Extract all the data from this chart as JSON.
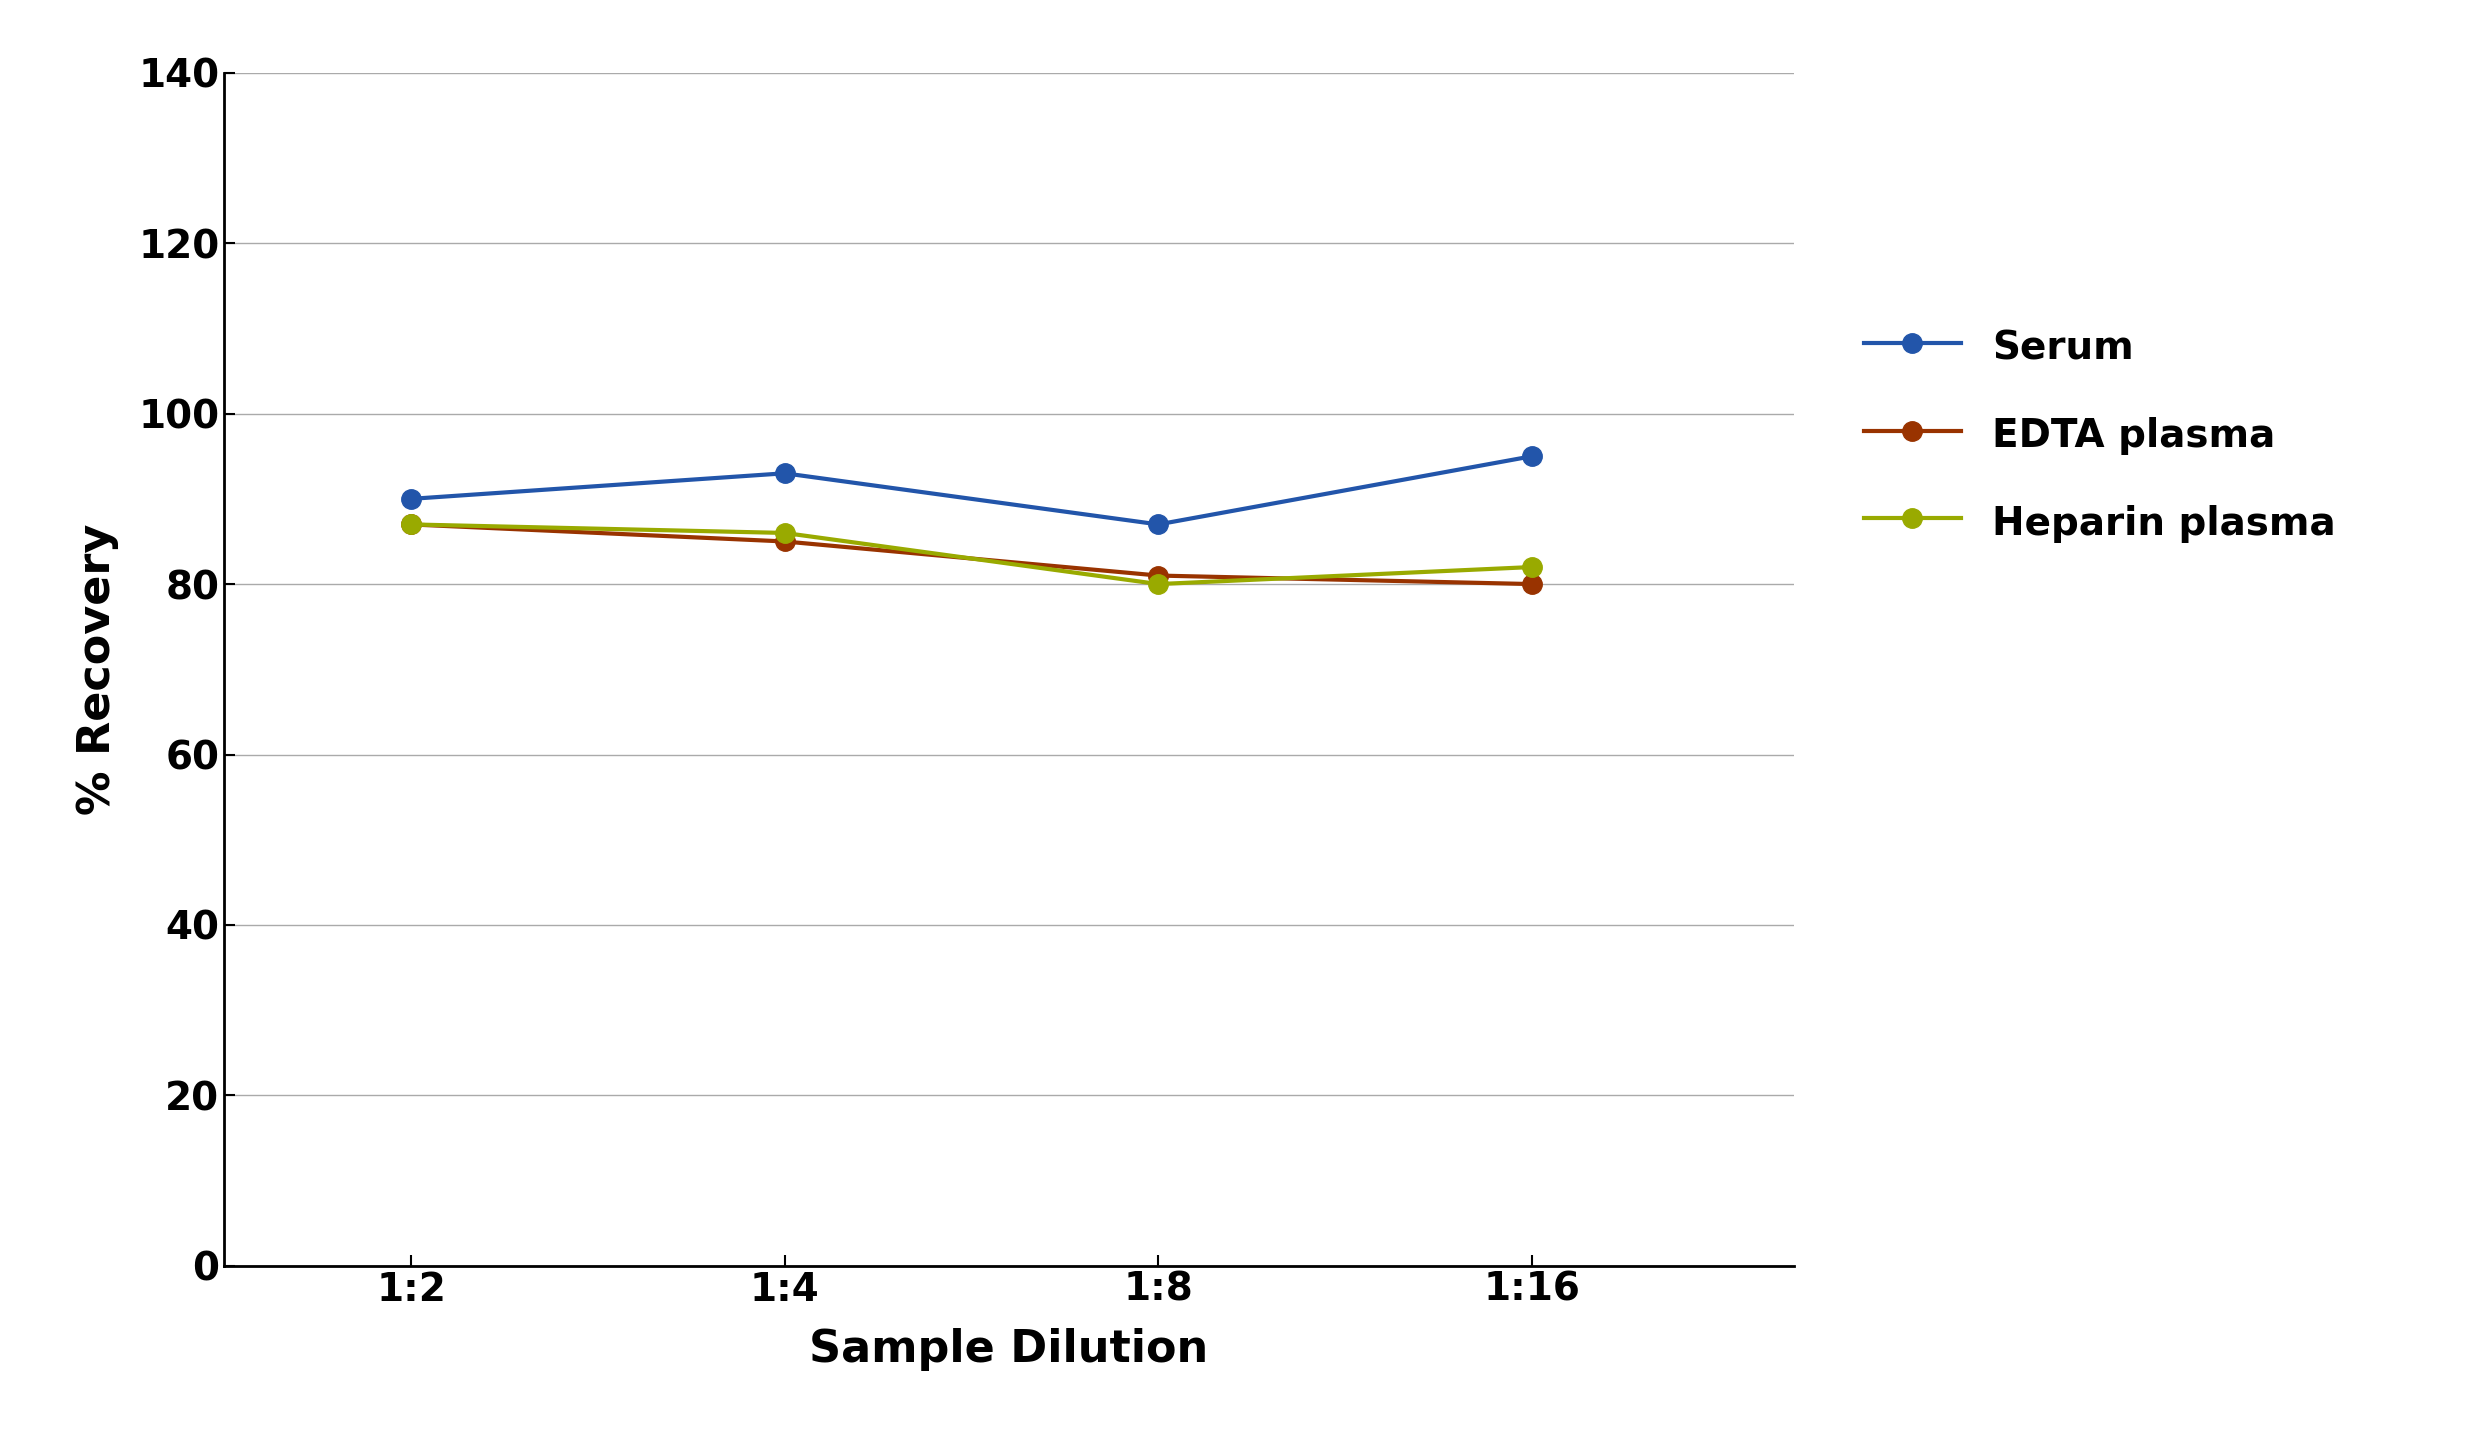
{
  "xlabel": "Sample Dilution",
  "ylabel": "% Recovery",
  "x_labels": [
    "1:2",
    "1:4",
    "1:8",
    "1:16"
  ],
  "x_positions": [
    0,
    1,
    2,
    3
  ],
  "ylim": [
    0,
    140
  ],
  "yticks": [
    0,
    20,
    40,
    60,
    80,
    100,
    120,
    140
  ],
  "series": [
    {
      "name": "Serum",
      "color": "#2255aa",
      "marker": "o",
      "values": [
        90,
        93,
        87,
        95
      ]
    },
    {
      "name": "EDTA plasma",
      "color": "#993300",
      "marker": "o",
      "values": [
        87,
        85,
        81,
        80
      ]
    },
    {
      "name": "Heparin plasma",
      "color": "#99aa00",
      "marker": "o",
      "values": [
        87,
        86,
        80,
        82
      ]
    }
  ],
  "background_color": "#ffffff",
  "grid_color": "#aaaaaa",
  "legend_fontsize": 28,
  "axis_label_fontsize": 32,
  "tick_fontsize": 28,
  "line_width": 3.0,
  "marker_size": 14
}
